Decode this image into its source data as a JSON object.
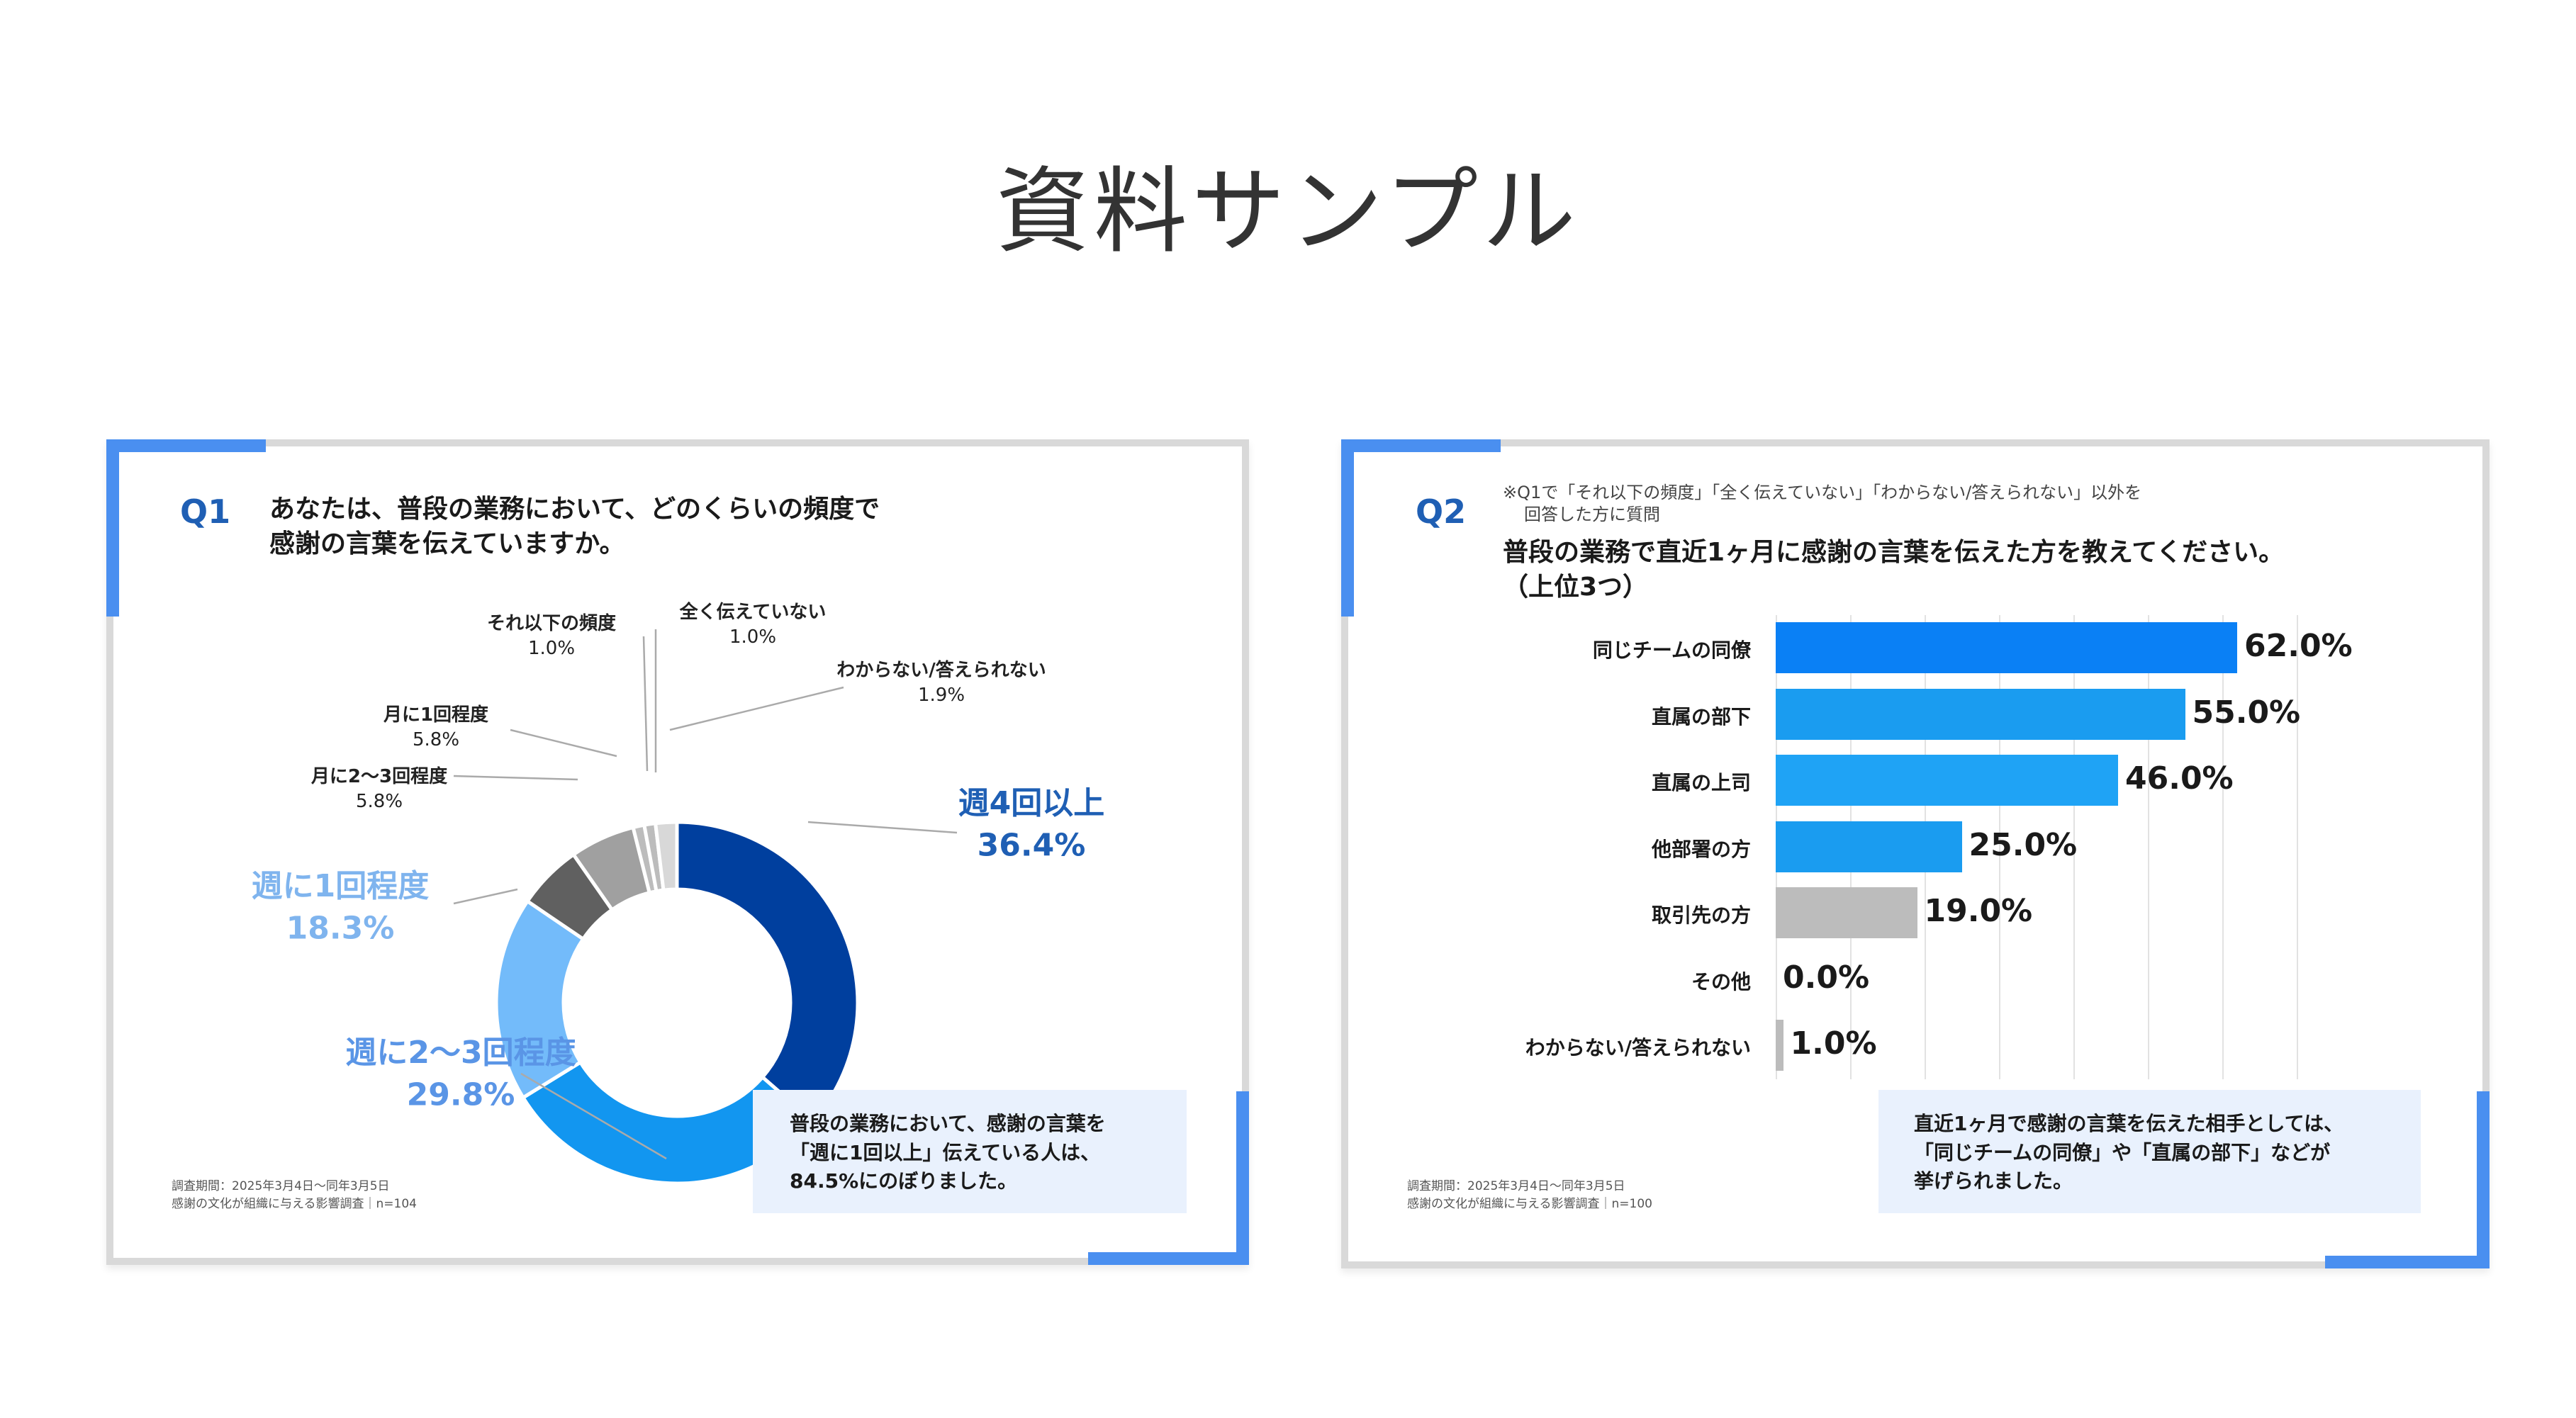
{
  "page": {
    "title": "資料サンプル"
  },
  "colors": {
    "accent": "#4a8ff0",
    "navy": "#1f5fb4",
    "donut": [
      "#003f9e",
      "#1296f0",
      "#73bbfa",
      "#606060",
      "#a0a0a0",
      "#bcbcbc",
      "#d8d8d8"
    ],
    "bars": [
      "#0a80f5",
      "#1a9cf0",
      "#1fa3f5",
      "#1a9cf0",
      "#bcbcbc",
      "#bcbcbc",
      "#bcbcbc"
    ]
  },
  "q1": {
    "number": "Q1",
    "question_line1": "あなたは、普段の業務において、どのくらいの頻度で",
    "question_line2": "感謝の言葉を伝えていますか。",
    "summary_line1": "普段の業務において、感謝の言葉を",
    "summary_line2": "「週に1回以上」伝えている人は、",
    "summary_line3": "84.5%にのぼりました。",
    "survey_line1": "調査期間：2025年3月4日〜同年3月5日",
    "survey_line2": "感謝の文化が組織に与える影響調査｜n=104"
  },
  "q2": {
    "number": "Q2",
    "note_line1": "※Q1で「それ以下の頻度」「全く伝えていない」「わからない/答えられない」以外を",
    "note_line2": "回答した方に質問",
    "question_line1": "普段の業務で直近1ヶ月に感謝の言葉を伝えた方を教えてください。",
    "question_line2": "（上位3つ）",
    "summary_line1": "直近1ヶ月で感謝の言葉を伝えた相手としては、",
    "summary_line2": "「同じチームの同僚」や「直属の部下」などが",
    "summary_line3": "挙げられました。",
    "survey_line1": "調査期間：2025年3月4日〜同年3月5日",
    "survey_line2": "感謝の文化が組織に与える影響調査｜n=100"
  },
  "chart_data": [
    {
      "type": "pie",
      "title": "あなたは、普段の業務において、どのくらいの頻度で感謝の言葉を伝えていますか。",
      "categories": [
        "週4回以上",
        "週に2〜3回程度",
        "週に1回程度",
        "月に2〜3回程度",
        "月に1回程度",
        "それ以下の頻度",
        "全く伝えていない",
        "わからない/答えられない"
      ],
      "values": [
        36.4,
        29.8,
        18.3,
        5.8,
        5.8,
        1.0,
        1.0,
        1.9
      ],
      "labels": [
        "36.4%",
        "29.8%",
        "18.3%",
        "5.8%",
        "5.8%",
        "1.0%",
        "1.0%",
        "1.9%"
      ],
      "donut": true
    },
    {
      "type": "bar",
      "orientation": "horizontal",
      "title": "普段の業務で直近1ヶ月に感謝の言葉を伝えた方を教えてください。（上位3つ）",
      "categories": [
        "同じチームの同僚",
        "直属の部下",
        "直属の上司",
        "他部署の方",
        "取引先の方",
        "その他",
        "わからない/答えられない"
      ],
      "values": [
        62.0,
        55.0,
        46.0,
        25.0,
        19.0,
        0.0,
        1.0
      ],
      "labels": [
        "62.0%",
        "55.0%",
        "46.0%",
        "25.0%",
        "19.0%",
        "0.0%",
        "1.0%"
      ],
      "xlim": [
        0,
        70
      ],
      "grid": true
    }
  ]
}
